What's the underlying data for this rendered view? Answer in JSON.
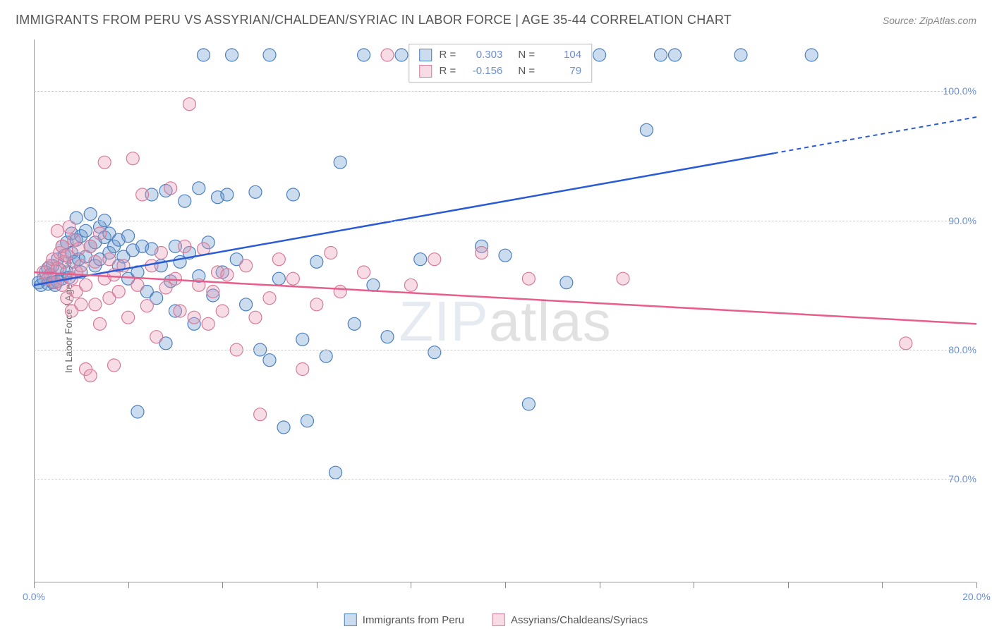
{
  "title": "IMMIGRANTS FROM PERU VS ASSYRIAN/CHALDEAN/SYRIAC IN LABOR FORCE | AGE 35-44 CORRELATION CHART",
  "source": "Source: ZipAtlas.com",
  "ylabel": "In Labor Force | Age 35-44",
  "watermark_a": "ZIP",
  "watermark_b": "atlas",
  "chart": {
    "type": "scatter",
    "xlim": [
      0,
      20
    ],
    "ylim": [
      62,
      104
    ],
    "xtick_positions": [
      0,
      2,
      4,
      6,
      8,
      10,
      12,
      14,
      16,
      18,
      20
    ],
    "xtick_labels": {
      "0": "0.0%",
      "20": "20.0%"
    },
    "ytick_positions": [
      70,
      80,
      90,
      100
    ],
    "ytick_labels": {
      "70": "70.0%",
      "80": "80.0%",
      "90": "90.0%",
      "100": "100.0%"
    },
    "grid_color": "#cccccc",
    "background_color": "#ffffff",
    "axis_color": "#999999",
    "tick_label_color": "#6b8fd4",
    "axis_label_color": "#666666",
    "marker_radius": 9,
    "marker_opacity": 0.42,
    "series": [
      {
        "name": "Immigrants from Peru",
        "color": "#6b9bd1",
        "fill": "rgba(107,155,209,0.35)",
        "stroke": "#4a7fbf",
        "line_color": "#2a5bd7",
        "R": "0.303",
        "N": "104",
        "trend": {
          "x1": 0,
          "y1": 85.0,
          "x2": 15.7,
          "y2": 95.2,
          "x2_dash": 20,
          "y2_dash": 98.0
        },
        "points": [
          [
            0.1,
            85.2
          ],
          [
            0.15,
            85.0
          ],
          [
            0.2,
            85.5
          ],
          [
            0.25,
            86.0
          ],
          [
            0.3,
            86.3
          ],
          [
            0.3,
            85.1
          ],
          [
            0.35,
            85.8
          ],
          [
            0.4,
            86.5
          ],
          [
            0.4,
            85.2
          ],
          [
            0.45,
            85.0
          ],
          [
            0.5,
            87.0
          ],
          [
            0.5,
            85.3
          ],
          [
            0.55,
            86.2
          ],
          [
            0.6,
            88.0
          ],
          [
            0.6,
            85.5
          ],
          [
            0.65,
            87.3
          ],
          [
            0.7,
            86.0
          ],
          [
            0.7,
            88.3
          ],
          [
            0.75,
            85.6
          ],
          [
            0.8,
            87.5
          ],
          [
            0.8,
            89.0
          ],
          [
            0.85,
            86.8
          ],
          [
            0.9,
            88.5
          ],
          [
            0.9,
            90.2
          ],
          [
            0.95,
            87.0
          ],
          [
            1.0,
            88.8
          ],
          [
            1.0,
            86.0
          ],
          [
            1.1,
            89.2
          ],
          [
            1.1,
            87.2
          ],
          [
            1.2,
            88.0
          ],
          [
            1.2,
            90.5
          ],
          [
            1.3,
            88.3
          ],
          [
            1.3,
            86.5
          ],
          [
            1.4,
            89.5
          ],
          [
            1.4,
            87.0
          ],
          [
            1.5,
            88.7
          ],
          [
            1.5,
            90.0
          ],
          [
            1.6,
            87.5
          ],
          [
            1.6,
            89.0
          ],
          [
            1.7,
            88.0
          ],
          [
            1.8,
            86.5
          ],
          [
            1.8,
            88.5
          ],
          [
            1.9,
            87.2
          ],
          [
            2.0,
            88.8
          ],
          [
            2.0,
            85.5
          ],
          [
            2.1,
            87.7
          ],
          [
            2.2,
            86.0
          ],
          [
            2.2,
            75.2
          ],
          [
            2.3,
            88.0
          ],
          [
            2.4,
            84.5
          ],
          [
            2.5,
            92.0
          ],
          [
            2.5,
            87.8
          ],
          [
            2.6,
            84.0
          ],
          [
            2.7,
            86.5
          ],
          [
            2.8,
            92.3
          ],
          [
            2.8,
            80.5
          ],
          [
            2.9,
            85.3
          ],
          [
            3.0,
            88.0
          ],
          [
            3.0,
            83.0
          ],
          [
            3.1,
            86.8
          ],
          [
            3.2,
            91.5
          ],
          [
            3.3,
            87.5
          ],
          [
            3.4,
            82.0
          ],
          [
            3.5,
            92.5
          ],
          [
            3.5,
            85.7
          ],
          [
            3.6,
            102.8
          ],
          [
            3.7,
            88.3
          ],
          [
            3.8,
            84.2
          ],
          [
            3.9,
            91.8
          ],
          [
            4.0,
            86.0
          ],
          [
            4.1,
            92.0
          ],
          [
            4.2,
            102.8
          ],
          [
            4.3,
            87.0
          ],
          [
            4.5,
            83.5
          ],
          [
            4.7,
            92.2
          ],
          [
            4.8,
            80.0
          ],
          [
            5.0,
            102.8
          ],
          [
            5.0,
            79.2
          ],
          [
            5.2,
            85.5
          ],
          [
            5.3,
            74.0
          ],
          [
            5.5,
            92.0
          ],
          [
            5.7,
            80.8
          ],
          [
            5.8,
            74.5
          ],
          [
            6.0,
            86.8
          ],
          [
            6.2,
            79.5
          ],
          [
            6.4,
            70.5
          ],
          [
            6.5,
            94.5
          ],
          [
            6.8,
            82.0
          ],
          [
            7.0,
            102.8
          ],
          [
            7.2,
            85.0
          ],
          [
            7.5,
            81.0
          ],
          [
            7.8,
            102.8
          ],
          [
            8.2,
            87.0
          ],
          [
            8.5,
            79.8
          ],
          [
            9.0,
            102.8
          ],
          [
            9.5,
            88.0
          ],
          [
            10.0,
            87.3
          ],
          [
            10.5,
            75.8
          ],
          [
            11.0,
            102.8
          ],
          [
            11.3,
            85.2
          ],
          [
            12.0,
            102.8
          ],
          [
            13.0,
            97.0
          ],
          [
            13.3,
            102.8
          ],
          [
            13.6,
            102.8
          ],
          [
            15.0,
            102.8
          ],
          [
            16.5,
            102.8
          ]
        ]
      },
      {
        "name": "Assyrians/Chaldeans/Syriacs",
        "color": "#e89ab5",
        "fill": "rgba(232,154,181,0.35)",
        "stroke": "#d67a9a",
        "line_color": "#e85d8a",
        "R": "-0.156",
        "N": "79",
        "trend": {
          "x1": 0,
          "y1": 86.0,
          "x2": 20,
          "y2": 82.0
        },
        "points": [
          [
            0.2,
            86.0
          ],
          [
            0.3,
            85.5
          ],
          [
            0.35,
            86.5
          ],
          [
            0.4,
            87.0
          ],
          [
            0.45,
            85.2
          ],
          [
            0.5,
            86.3
          ],
          [
            0.5,
            89.2
          ],
          [
            0.55,
            87.5
          ],
          [
            0.6,
            85.0
          ],
          [
            0.6,
            88.0
          ],
          [
            0.65,
            86.8
          ],
          [
            0.7,
            84.0
          ],
          [
            0.7,
            87.3
          ],
          [
            0.75,
            89.5
          ],
          [
            0.8,
            85.5
          ],
          [
            0.8,
            83.0
          ],
          [
            0.85,
            88.5
          ],
          [
            0.9,
            86.0
          ],
          [
            0.9,
            84.5
          ],
          [
            0.95,
            87.8
          ],
          [
            1.0,
            83.5
          ],
          [
            1.0,
            86.5
          ],
          [
            1.1,
            78.5
          ],
          [
            1.1,
            85.0
          ],
          [
            1.2,
            88.0
          ],
          [
            1.2,
            78.0
          ],
          [
            1.3,
            83.5
          ],
          [
            1.3,
            86.8
          ],
          [
            1.4,
            82.0
          ],
          [
            1.4,
            89.0
          ],
          [
            1.5,
            94.5
          ],
          [
            1.5,
            85.5
          ],
          [
            1.6,
            84.0
          ],
          [
            1.6,
            87.0
          ],
          [
            1.7,
            78.8
          ],
          [
            1.7,
            85.8
          ],
          [
            1.8,
            84.5
          ],
          [
            1.9,
            86.5
          ],
          [
            2.0,
            82.5
          ],
          [
            2.1,
            94.8
          ],
          [
            2.2,
            85.0
          ],
          [
            2.3,
            92.0
          ],
          [
            2.4,
            83.4
          ],
          [
            2.5,
            86.5
          ],
          [
            2.6,
            81.0
          ],
          [
            2.7,
            87.5
          ],
          [
            2.8,
            84.8
          ],
          [
            2.9,
            92.5
          ],
          [
            3.0,
            85.5
          ],
          [
            3.1,
            83.0
          ],
          [
            3.2,
            88.0
          ],
          [
            3.3,
            99.0
          ],
          [
            3.4,
            82.5
          ],
          [
            3.5,
            85.0
          ],
          [
            3.6,
            87.8
          ],
          [
            3.7,
            82.0
          ],
          [
            3.8,
            84.5
          ],
          [
            3.9,
            86.0
          ],
          [
            4.0,
            83.0
          ],
          [
            4.1,
            85.8
          ],
          [
            4.3,
            80.0
          ],
          [
            4.5,
            86.5
          ],
          [
            4.7,
            82.5
          ],
          [
            4.8,
            75.0
          ],
          [
            5.0,
            84.0
          ],
          [
            5.2,
            87.0
          ],
          [
            5.5,
            85.5
          ],
          [
            5.7,
            78.5
          ],
          [
            6.0,
            83.5
          ],
          [
            6.3,
            87.5
          ],
          [
            6.5,
            84.5
          ],
          [
            7.0,
            86.0
          ],
          [
            7.5,
            102.8
          ],
          [
            8.0,
            85.0
          ],
          [
            8.5,
            87.0
          ],
          [
            9.5,
            87.5
          ],
          [
            10.5,
            85.5
          ],
          [
            12.5,
            85.5
          ],
          [
            18.5,
            80.5
          ]
        ]
      }
    ]
  },
  "legend_top": {
    "rows": [
      {
        "swatch_fill": "rgba(107,155,209,0.35)",
        "swatch_border": "#4a7fbf",
        "r_label": "R =",
        "r_val": "0.303",
        "n_label": "N =",
        "n_val": "104"
      },
      {
        "swatch_fill": "rgba(232,154,181,0.35)",
        "swatch_border": "#d67a9a",
        "r_label": "R =",
        "r_val": "-0.156",
        "n_label": "N =",
        "n_val": "79"
      }
    ]
  },
  "legend_bottom": {
    "items": [
      {
        "swatch_fill": "rgba(107,155,209,0.35)",
        "swatch_border": "#4a7fbf",
        "label": "Immigrants from Peru"
      },
      {
        "swatch_fill": "rgba(232,154,181,0.35)",
        "swatch_border": "#d67a9a",
        "label": "Assyrians/Chaldeans/Syriacs"
      }
    ]
  }
}
